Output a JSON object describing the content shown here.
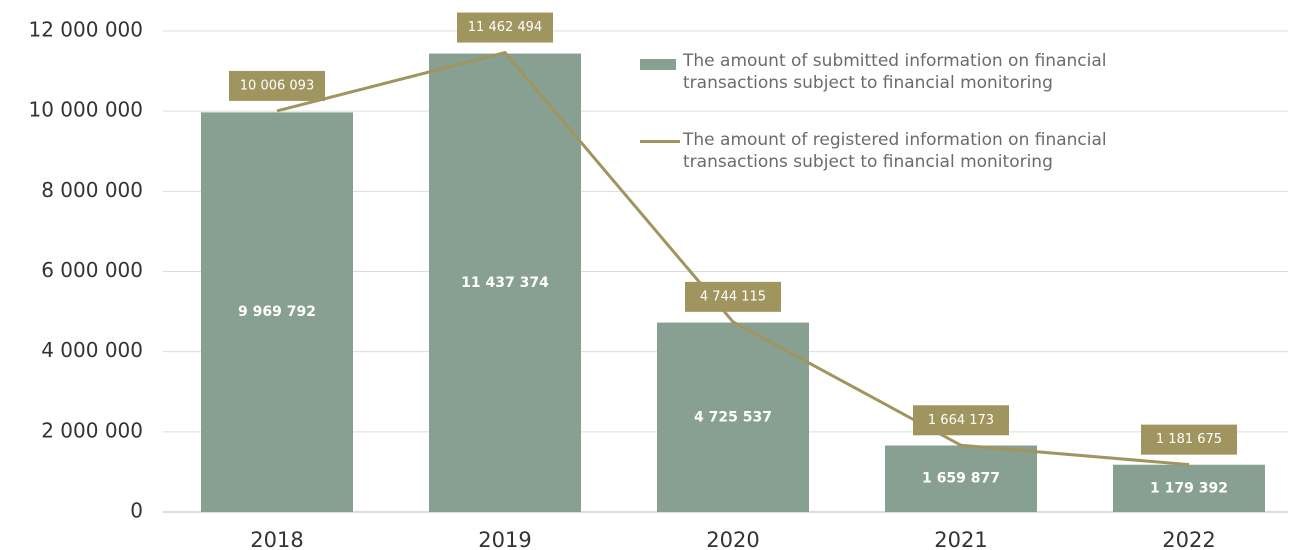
{
  "chart_data": {
    "type": "bar",
    "categories": [
      "2018",
      "2019",
      "2020",
      "2021",
      "2022"
    ],
    "series": [
      {
        "name": "The amount of submitted information on financial transactions subject to financial monitoring",
        "type": "bar",
        "color": "#88a091",
        "values": [
          9969792,
          11437374,
          4725537,
          1659877,
          1179392
        ],
        "value_labels": [
          "9 969 792",
          "11 437 374",
          "4 725 537",
          "1 659 877",
          "1 179 392"
        ]
      },
      {
        "name": "The amount of registered information on financial transactions subject to financial monitoring",
        "type": "line",
        "color": "#a1955f",
        "values": [
          10006093,
          11462494,
          4744115,
          1664173,
          1181675
        ],
        "value_labels": [
          "10 006 093",
          "11 462 494",
          "4 744 115",
          "1 664 173",
          "1 181 675"
        ]
      }
    ],
    "ylim": [
      0,
      12000000
    ],
    "yticks": [
      0,
      {
        "value": 2000000,
        "label": "2 000 000"
      },
      {
        "value": 4000000,
        "label": "4 000 000"
      },
      {
        "value": 6000000,
        "label": "6 000 000"
      },
      {
        "value": 8000000,
        "label": "8 000 000"
      },
      {
        "value": 10000000,
        "label": "10 000 000"
      },
      {
        "value": 12000000,
        "label": "12 000 000"
      }
    ],
    "grid": true,
    "legend": "top-right"
  }
}
